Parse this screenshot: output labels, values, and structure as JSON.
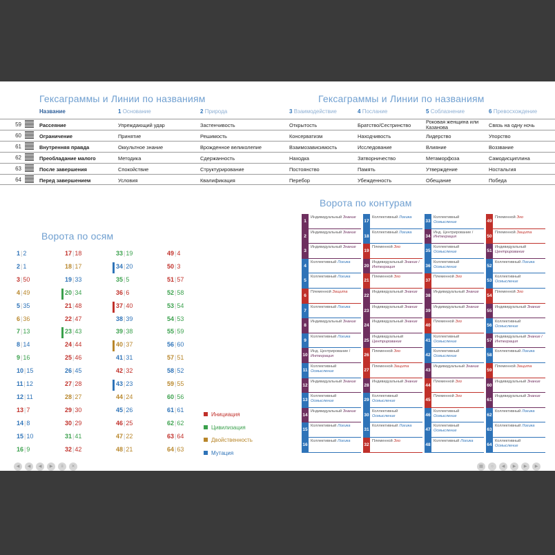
{
  "colors": {
    "init": "#c0302a",
    "civ": "#3aa04c",
    "dual": "#b8862a",
    "mut": "#2e73b8",
    "purple": "#6e2f5f",
    "title": "#6f9fd0"
  },
  "hexagrams": {
    "title_left": "Гексаграммы и Линии по названиям",
    "title_right": "Гексаграммы и Линии по названиям",
    "header": {
      "name": "Название",
      "c1n": "1",
      "c1": "Основание",
      "c2n": "2",
      "c2": "Природа",
      "c3n": "3",
      "c3": "Взаимодействие",
      "c4n": "4",
      "c4": "Послание",
      "c5n": "5",
      "c5": "Соблазнение",
      "c6n": "6",
      "c6": "Превосхождение"
    },
    "rows": [
      {
        "num": "59",
        "name": "Рассеяние",
        "c1": "Упреждающий удар",
        "c2": "Застенчивость",
        "c3": "Открытость",
        "c4": "Братство/Сестринство",
        "c5": "Роковая женщина или Казанова",
        "c6": "Связь на одну ночь"
      },
      {
        "num": "60",
        "name": "Ограничение",
        "c1": "Принятие",
        "c2": "Решимость",
        "c3": "Консерватизм",
        "c4": "Находчивость",
        "c5": "Лидерство",
        "c6": "Упорство"
      },
      {
        "num": "61",
        "name": "Внутренняя правда",
        "c1": "Оккультное знание",
        "c2": "Врожденное великолепие",
        "c3": "Взаимозависимость",
        "c4": "Исследование",
        "c5": "Влияние",
        "c6": "Воззвание"
      },
      {
        "num": "62",
        "name": "Преобладание малого",
        "c1": "Методика",
        "c2": "Сдержанность",
        "c3": "Находка",
        "c4": "Затворничество",
        "c5": "Метаморфоза",
        "c6": "Самодисциплина"
      },
      {
        "num": "63",
        "name": "После завершения",
        "c1": "Спокойствие",
        "c2": "Структурирование",
        "c3": "Постоянство",
        "c4": "Память",
        "c5": "Утверждение",
        "c6": "Ностальгия"
      },
      {
        "num": "64",
        "name": "Перед завершением",
        "c1": "Условия",
        "c2": "Квалификация",
        "c3": "Перебор",
        "c4": "Убежденность",
        "c5": "Обещание",
        "c6": "Победа"
      }
    ]
  },
  "axis": {
    "title": "Ворота по осям",
    "cols": [
      [
        [
          "1",
          "2",
          "m"
        ],
        [
          "2",
          "1",
          "m"
        ],
        [
          "3",
          "50",
          "i"
        ],
        [
          "4",
          "49",
          "d"
        ],
        [
          "5",
          "35",
          "m"
        ],
        [
          "6",
          "36",
          "d"
        ],
        [
          "7",
          "13",
          "c"
        ],
        [
          "8",
          "14",
          "m"
        ],
        [
          "9",
          "16",
          "c"
        ],
        [
          "10",
          "15",
          "m"
        ],
        [
          "11",
          "12",
          "m"
        ],
        [
          "12",
          "11",
          "m"
        ],
        [
          "13",
          "7",
          "i"
        ],
        [
          "14",
          "8",
          "m"
        ],
        [
          "15",
          "10",
          "m"
        ],
        [
          "16",
          "9",
          "c"
        ]
      ],
      [
        [
          "17",
          "18",
          "i"
        ],
        [
          "18",
          "17",
          "d"
        ],
        [
          "19",
          "33",
          "m"
        ],
        [
          "20",
          "34",
          "c"
        ],
        [
          "21",
          "48",
          "i"
        ],
        [
          "22",
          "47",
          "i"
        ],
        [
          "23",
          "43",
          "c"
        ],
        [
          "24",
          "44",
          "i"
        ],
        [
          "25",
          "46",
          "i"
        ],
        [
          "26",
          "45",
          "m"
        ],
        [
          "27",
          "28",
          "i"
        ],
        [
          "28",
          "27",
          "d"
        ],
        [
          "29",
          "30",
          "i"
        ],
        [
          "30",
          "29",
          "i"
        ],
        [
          "31",
          "41",
          "c"
        ],
        [
          "32",
          "42",
          "i"
        ]
      ],
      [
        [
          "33",
          "19",
          "c"
        ],
        [
          "34",
          "20",
          "m"
        ],
        [
          "35",
          "5",
          "c"
        ],
        [
          "36",
          "6",
          "i"
        ],
        [
          "37",
          "40",
          "i"
        ],
        [
          "38",
          "39",
          "m"
        ],
        [
          "39",
          "38",
          "c"
        ],
        [
          "40",
          "37",
          "d"
        ],
        [
          "41",
          "31",
          "m"
        ],
        [
          "42",
          "32",
          "i"
        ],
        [
          "43",
          "23",
          "m"
        ],
        [
          "44",
          "24",
          "d"
        ],
        [
          "45",
          "26",
          "m"
        ],
        [
          "46",
          "25",
          "i"
        ],
        [
          "47",
          "22",
          "d"
        ],
        [
          "48",
          "21",
          "d"
        ]
      ],
      [
        [
          "49",
          "4",
          "i"
        ],
        [
          "50",
          "3",
          "i"
        ],
        [
          "51",
          "57",
          "i"
        ],
        [
          "52",
          "58",
          "c"
        ],
        [
          "53",
          "54",
          "c"
        ],
        [
          "54",
          "53",
          "c"
        ],
        [
          "55",
          "59",
          "c"
        ],
        [
          "56",
          "60",
          "m"
        ],
        [
          "57",
          "51",
          "d"
        ],
        [
          "58",
          "52",
          "m"
        ],
        [
          "59",
          "55",
          "d"
        ],
        [
          "60",
          "56",
          "c"
        ],
        [
          "61",
          "61",
          "m"
        ],
        [
          "62",
          "62",
          "c"
        ],
        [
          "63",
          "64",
          "i"
        ],
        [
          "64",
          "63",
          "d"
        ]
      ]
    ],
    "legend": [
      {
        "label": "Инициация",
        "color": "#c0302a"
      },
      {
        "label": "Цивилизация",
        "color": "#3aa04c"
      },
      {
        "label": "Двойственность",
        "color": "#b8862a"
      },
      {
        "label": "Мутация",
        "color": "#2e73b8"
      }
    ]
  },
  "circuits": {
    "title": "Ворота по контурам",
    "cols": [
      [
        [
          "1",
          "p",
          "Индивидуальный",
          "Знание"
        ],
        [
          "2",
          "p",
          "Индивидуальный",
          "Знание"
        ],
        [
          "3",
          "p",
          "Индивидуальный",
          "Знание"
        ],
        [
          "4",
          "b",
          "Коллективный",
          "Логика"
        ],
        [
          "5",
          "b",
          "Коллективный",
          "Логика"
        ],
        [
          "6",
          "r",
          "Племенной",
          "Защита"
        ],
        [
          "7",
          "b",
          "Коллективный",
          "Логика"
        ],
        [
          "8",
          "p",
          "Индивидуальный",
          "Знание"
        ],
        [
          "9",
          "b",
          "Коллективный",
          "Логика"
        ],
        [
          "10",
          "p",
          "Инд. Центрирование /",
          "Интеграция"
        ],
        [
          "11",
          "b",
          "Коллективный",
          "Осмысление"
        ],
        [
          "12",
          "p",
          "Индивидуальный",
          "Знание"
        ],
        [
          "13",
          "b",
          "Коллективный",
          "Осмысление"
        ],
        [
          "14",
          "p",
          "Индивидуальный",
          "Знание"
        ],
        [
          "15",
          "b",
          "Коллективный",
          "Логика"
        ],
        [
          "16",
          "b",
          "Коллективный",
          "Логика"
        ]
      ],
      [
        [
          "17",
          "b",
          "Коллективный",
          "Логика"
        ],
        [
          "18",
          "b",
          "Коллективный",
          "Логика"
        ],
        [
          "19",
          "r",
          "Племенной",
          "Эго"
        ],
        [
          "20",
          "p",
          "Индивидуальный",
          "Знание / Интеграция"
        ],
        [
          "21",
          "r",
          "Племенной",
          "Эго"
        ],
        [
          "22",
          "p",
          "Индивидуальный",
          "Знание"
        ],
        [
          "23",
          "p",
          "Индивидуальный",
          "Знание"
        ],
        [
          "24",
          "p",
          "Индивидуальный",
          "Знание"
        ],
        [
          "25",
          "p",
          "Индивидуальный",
          "Центрирование"
        ],
        [
          "26",
          "r",
          "Племенной",
          "Эго"
        ],
        [
          "27",
          "r",
          "Племенной",
          "Защита"
        ],
        [
          "28",
          "p",
          "Индивидуальный",
          "Знание"
        ],
        [
          "29",
          "b",
          "Коллективный",
          "Осмысление"
        ],
        [
          "30",
          "b",
          "Коллективный",
          "Осмысление"
        ],
        [
          "31",
          "b",
          "Коллективный",
          "Логика"
        ],
        [
          "32",
          "r",
          "Племенной",
          "Эго"
        ]
      ],
      [
        [
          "33",
          "b",
          "Коллективный",
          "Осмысление"
        ],
        [
          "34",
          "p",
          "Инд. Центрирование /",
          "Интеграция"
        ],
        [
          "35",
          "b",
          "Коллективный",
          "Осмысление"
        ],
        [
          "36",
          "b",
          "Коллективный",
          "Осмысление"
        ],
        [
          "37",
          "r",
          "Племенной",
          "Эго"
        ],
        [
          "38",
          "p",
          "Индивидуальный",
          "Знание"
        ],
        [
          "39",
          "p",
          "Индивидуальный",
          "Знание"
        ],
        [
          "40",
          "r",
          "Племенной",
          "Эго"
        ],
        [
          "41",
          "b",
          "Коллективный",
          "Осмысление"
        ],
        [
          "42",
          "b",
          "Коллективный",
          "Осмысление"
        ],
        [
          "43",
          "p",
          "Индивидуальный",
          "Знание"
        ],
        [
          "44",
          "r",
          "Племенной",
          "Эго"
        ],
        [
          "45",
          "r",
          "Племенной",
          "Эго"
        ],
        [
          "46",
          "b",
          "Коллективный",
          "Осмысление"
        ],
        [
          "47",
          "b",
          "Коллективный",
          "Осмысление"
        ],
        [
          "48",
          "b",
          "Коллективный",
          "Логика"
        ]
      ],
      [
        [
          "49",
          "r",
          "Племенной",
          "Эго"
        ],
        [
          "50",
          "r",
          "Племенной",
          "Защита"
        ],
        [
          "51",
          "p",
          "Индивидуальный",
          "Центрирование"
        ],
        [
          "52",
          "b",
          "Коллективный",
          "Логика"
        ],
        [
          "53",
          "b",
          "Коллективный",
          "Осмысление"
        ],
        [
          "54",
          "r",
          "Племенной",
          "Эго"
        ],
        [
          "55",
          "p",
          "Индивидуальный",
          "Знание"
        ],
        [
          "56",
          "b",
          "Коллективный",
          "Осмысление"
        ],
        [
          "57",
          "p",
          "Индивидуальный",
          "Знание / Интеграция"
        ],
        [
          "58",
          "b",
          "Коллективный",
          "Логика"
        ],
        [
          "59",
          "r",
          "Племенной",
          "Защита"
        ],
        [
          "60",
          "p",
          "Индивидуальный",
          "Знание"
        ],
        [
          "61",
          "p",
          "Индивидуальный",
          "Знание"
        ],
        [
          "62",
          "b",
          "Коллективный",
          "Логика"
        ],
        [
          "63",
          "b",
          "Коллективный",
          "Логика"
        ],
        [
          "64",
          "b",
          "Коллективный",
          "Осмысление"
        ]
      ]
    ]
  }
}
